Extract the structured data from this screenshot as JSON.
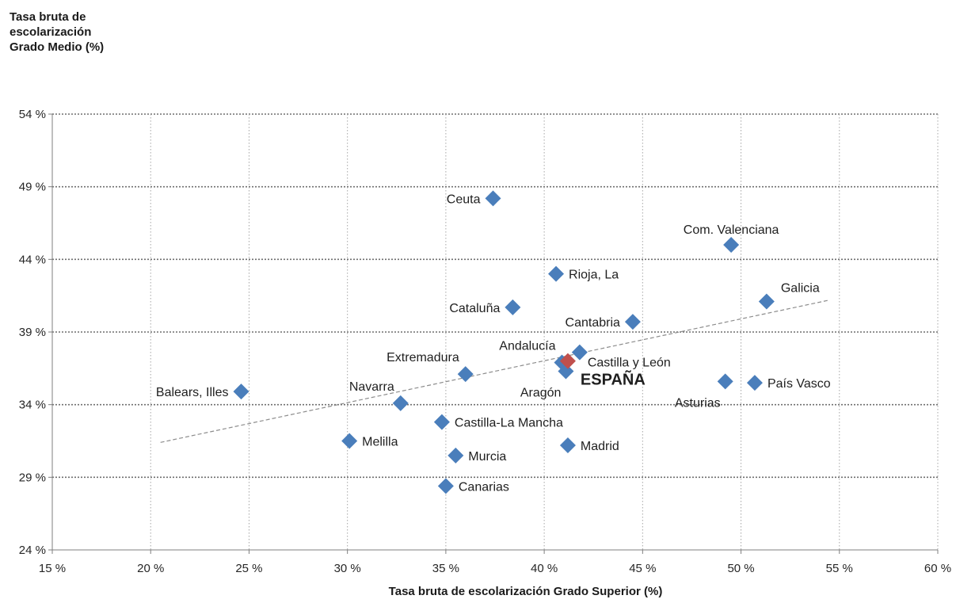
{
  "chart_data": {
    "type": "scatter",
    "title": "",
    "ylabel_lines": [
      "Tasa bruta de",
      "escolarización",
      "Grado Medio (%)"
    ],
    "xlabel": "Tasa bruta de escolarización Grado Superior (%)",
    "xlim": [
      15,
      60
    ],
    "ylim": [
      24,
      54
    ],
    "x_ticks": [
      {
        "value": 15,
        "label": "15 %"
      },
      {
        "value": 20,
        "label": "20 %"
      },
      {
        "value": 25,
        "label": "25 %"
      },
      {
        "value": 30,
        "label": "30 %"
      },
      {
        "value": 35,
        "label": "35 %"
      },
      {
        "value": 40,
        "label": "40 %"
      },
      {
        "value": 45,
        "label": "45 %"
      },
      {
        "value": 50,
        "label": "50 %"
      },
      {
        "value": 55,
        "label": "55 %"
      },
      {
        "value": 60,
        "label": "60 %"
      }
    ],
    "y_ticks": [
      {
        "value": 24,
        "label": "24 %"
      },
      {
        "value": 29,
        "label": "29 %"
      },
      {
        "value": 34,
        "label": "34 %"
      },
      {
        "value": 39,
        "label": "39 %"
      },
      {
        "value": 44,
        "label": "44 %"
      },
      {
        "value": 49,
        "label": "49 %"
      },
      {
        "value": 54,
        "label": "54 %"
      }
    ],
    "grid": true,
    "trendline": {
      "x": [
        20.5,
        54.5
      ],
      "y": [
        31.4,
        41.2
      ]
    },
    "colors": {
      "point": "#4a7ebb",
      "highlight": "#c0504d",
      "grid": "#8c8c8c",
      "trend": "#8c8c8c"
    },
    "points": [
      {
        "name": "Ceuta",
        "x": 37.4,
        "y": 48.2,
        "label_pos": "left"
      },
      {
        "name": "Com. Valenciana",
        "x": 49.5,
        "y": 45.0,
        "label_pos": "top"
      },
      {
        "name": "Rioja, La",
        "x": 40.6,
        "y": 43.0,
        "label_pos": "right"
      },
      {
        "name": "Galicia",
        "x": 51.3,
        "y": 41.1,
        "label_pos": "topright"
      },
      {
        "name": "Cataluña",
        "x": 38.4,
        "y": 40.7,
        "label_pos": "left"
      },
      {
        "name": "Cantabria",
        "x": 44.5,
        "y": 39.7,
        "label_pos": "left"
      },
      {
        "name": "Castilla y León",
        "x": 41.8,
        "y": 37.6,
        "label_pos": "rightbelow"
      },
      {
        "name": "Andalucía",
        "x": 40.9,
        "y": 36.9,
        "label_pos": "topleft"
      },
      {
        "name": "Aragón",
        "x": 41.1,
        "y": 36.3,
        "label_pos": "bottomleft"
      },
      {
        "name": "Extremadura",
        "x": 36.0,
        "y": 36.1,
        "label_pos": "topleft"
      },
      {
        "name": "Asturias",
        "x": 49.2,
        "y": 35.6,
        "label_pos": "bottomleft"
      },
      {
        "name": "País Vasco",
        "x": 50.7,
        "y": 35.5,
        "label_pos": "right"
      },
      {
        "name": "Balears, Illes",
        "x": 24.6,
        "y": 34.9,
        "label_pos": "left"
      },
      {
        "name": "Navarra",
        "x": 32.7,
        "y": 34.1,
        "label_pos": "topleft"
      },
      {
        "name": "Castilla-La Mancha",
        "x": 34.8,
        "y": 32.8,
        "label_pos": "right"
      },
      {
        "name": "Melilla",
        "x": 30.1,
        "y": 31.5,
        "label_pos": "right"
      },
      {
        "name": "Madrid",
        "x": 41.2,
        "y": 31.2,
        "label_pos": "right"
      },
      {
        "name": "Murcia",
        "x": 35.5,
        "y": 30.5,
        "label_pos": "right"
      },
      {
        "name": "Canarias",
        "x": 35.0,
        "y": 28.4,
        "label_pos": "right"
      }
    ],
    "highlight": {
      "name": "ESPAÑA",
      "x": 41.2,
      "y": 37.0
    }
  }
}
